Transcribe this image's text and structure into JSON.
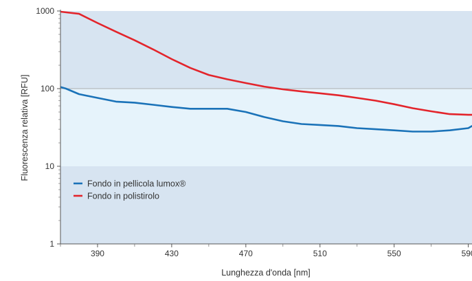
{
  "chart_data": {
    "type": "line",
    "title": "",
    "xlabel": "Lunghezza d'onda [nm]",
    "ylabel": "Fluorescenza relativa [RFU]",
    "y_scale": "log",
    "xlim": [
      370,
      592
    ],
    "ylim": [
      1,
      1000
    ],
    "x_ticks": [
      390,
      430,
      470,
      510,
      550,
      590
    ],
    "x_tick_labels": [
      "390",
      "430",
      "470",
      "510",
      "550",
      "590"
    ],
    "y_ticks": [
      1,
      10,
      100,
      1000
    ],
    "y_tick_labels": [
      "1",
      "10",
      "100",
      "1000"
    ],
    "grid": false,
    "legend_position": "lower-left",
    "series": [
      {
        "name": "Fondo in pellicola lumox®",
        "color": "#1a72b8",
        "x": [
          370,
          373,
          380,
          390,
          400,
          410,
          420,
          430,
          440,
          450,
          460,
          470,
          480,
          490,
          500,
          510,
          520,
          530,
          540,
          550,
          560,
          570,
          580,
          590,
          592
        ],
        "y": [
          105,
          100,
          85,
          76,
          68,
          66,
          62,
          58,
          55,
          55,
          55,
          50,
          43,
          38,
          35,
          34,
          33,
          31,
          30,
          29,
          28,
          28,
          29,
          31,
          33
        ]
      },
      {
        "name": "Fondo in polistirolo",
        "color": "#e3242b",
        "x": [
          370,
          380,
          390,
          400,
          410,
          420,
          430,
          440,
          450,
          460,
          470,
          480,
          490,
          500,
          510,
          520,
          530,
          540,
          550,
          560,
          570,
          580,
          590,
          592
        ],
        "y": [
          980,
          920,
          700,
          540,
          420,
          320,
          240,
          185,
          150,
          132,
          118,
          106,
          98,
          92,
          87,
          82,
          76,
          70,
          63,
          56,
          51,
          47,
          46,
          46
        ]
      }
    ]
  }
}
